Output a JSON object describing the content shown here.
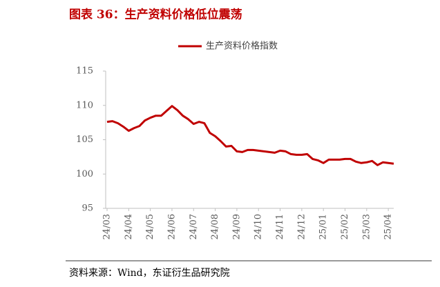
{
  "chart_data": {
    "type": "line",
    "title": "图表 36：生产资料价格低位震荡",
    "source": "资料来源：Wind，东证衍生品研究院",
    "categories": [
      "24/03",
      null,
      null,
      null,
      "24/04",
      null,
      null,
      null,
      "24/05",
      null,
      null,
      null,
      "24/06",
      null,
      null,
      null,
      "24/07",
      null,
      null,
      null,
      "24/08",
      null,
      null,
      null,
      "24/09",
      null,
      null,
      null,
      "24/10",
      null,
      null,
      null,
      "24/11",
      null,
      null,
      null,
      "24/12",
      null,
      null,
      null,
      "25/01",
      null,
      null,
      null,
      "25/02",
      null,
      null,
      null,
      "25/03",
      null,
      null,
      null,
      "25/04",
      null
    ],
    "series": [
      {
        "name": "生产资料价格指数",
        "color": "#c00000",
        "values": [
          107.6,
          107.7,
          107.4,
          106.9,
          106.3,
          106.7,
          107.0,
          107.8,
          108.2,
          108.5,
          108.5,
          109.2,
          109.9,
          109.3,
          108.5,
          108.0,
          107.3,
          107.6,
          107.4,
          106.0,
          105.5,
          104.8,
          104.0,
          104.1,
          103.3,
          103.2,
          103.5,
          103.5,
          103.4,
          103.3,
          103.2,
          103.1,
          103.4,
          103.3,
          102.9,
          102.8,
          102.8,
          102.9,
          102.2,
          102.0,
          101.6,
          102.1,
          102.1,
          102.1,
          102.2,
          102.2,
          101.8,
          101.6,
          101.7,
          101.9,
          101.3,
          101.7,
          101.6,
          101.5
        ]
      }
    ],
    "ylim": [
      95,
      115
    ],
    "yticks": [
      95,
      100,
      105,
      110,
      115
    ],
    "grid": false,
    "legend": "top"
  }
}
